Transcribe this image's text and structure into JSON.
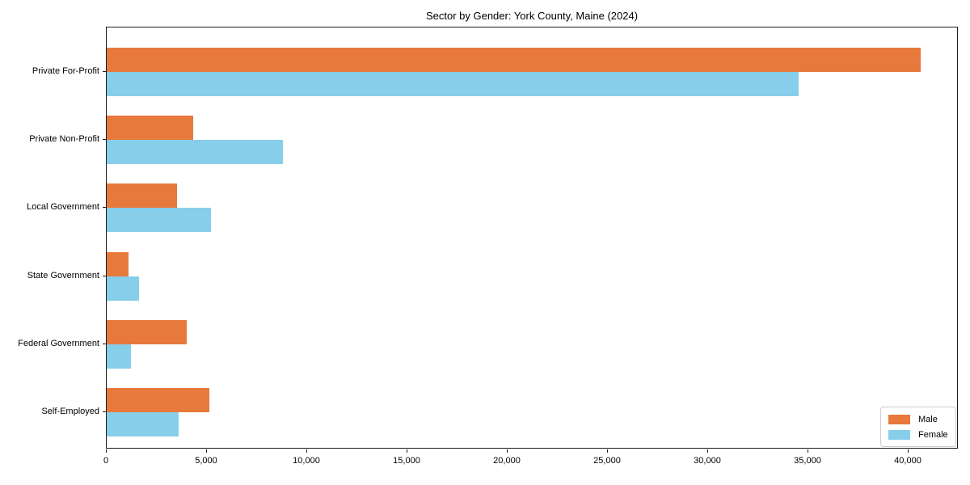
{
  "chart_data": {
    "type": "bar",
    "orientation": "horizontal",
    "title": "Sector by Gender: York County, Maine (2024)",
    "categories": [
      "Private For-Profit",
      "Private Non-Profit",
      "Local Government",
      "State Government",
      "Federal Government",
      "Self-Employed"
    ],
    "series": [
      {
        "name": "Male",
        "color": "#e7793c",
        "values": [
          40600,
          4300,
          3500,
          1100,
          4000,
          5100
        ]
      },
      {
        "name": "Female",
        "color": "#87ceeb",
        "values": [
          34500,
          8800,
          5200,
          1600,
          1200,
          3600
        ]
      }
    ],
    "xlabel": "",
    "ylabel": "",
    "xlim": [
      0,
      42500
    ],
    "xticks": [
      {
        "value": 0,
        "label": "0"
      },
      {
        "value": 5000,
        "label": "5,000"
      },
      {
        "value": 10000,
        "label": "10,000"
      },
      {
        "value": 15000,
        "label": "15,000"
      },
      {
        "value": 20000,
        "label": "20,000"
      },
      {
        "value": 25000,
        "label": "25,000"
      },
      {
        "value": 30000,
        "label": "30,000"
      },
      {
        "value": 35000,
        "label": "35,000"
      },
      {
        "value": 40000,
        "label": "40,000"
      }
    ],
    "grid": false,
    "legend_position": "lower right",
    "spine_color": "#1a1a1a",
    "background_color": "#ffffff"
  }
}
